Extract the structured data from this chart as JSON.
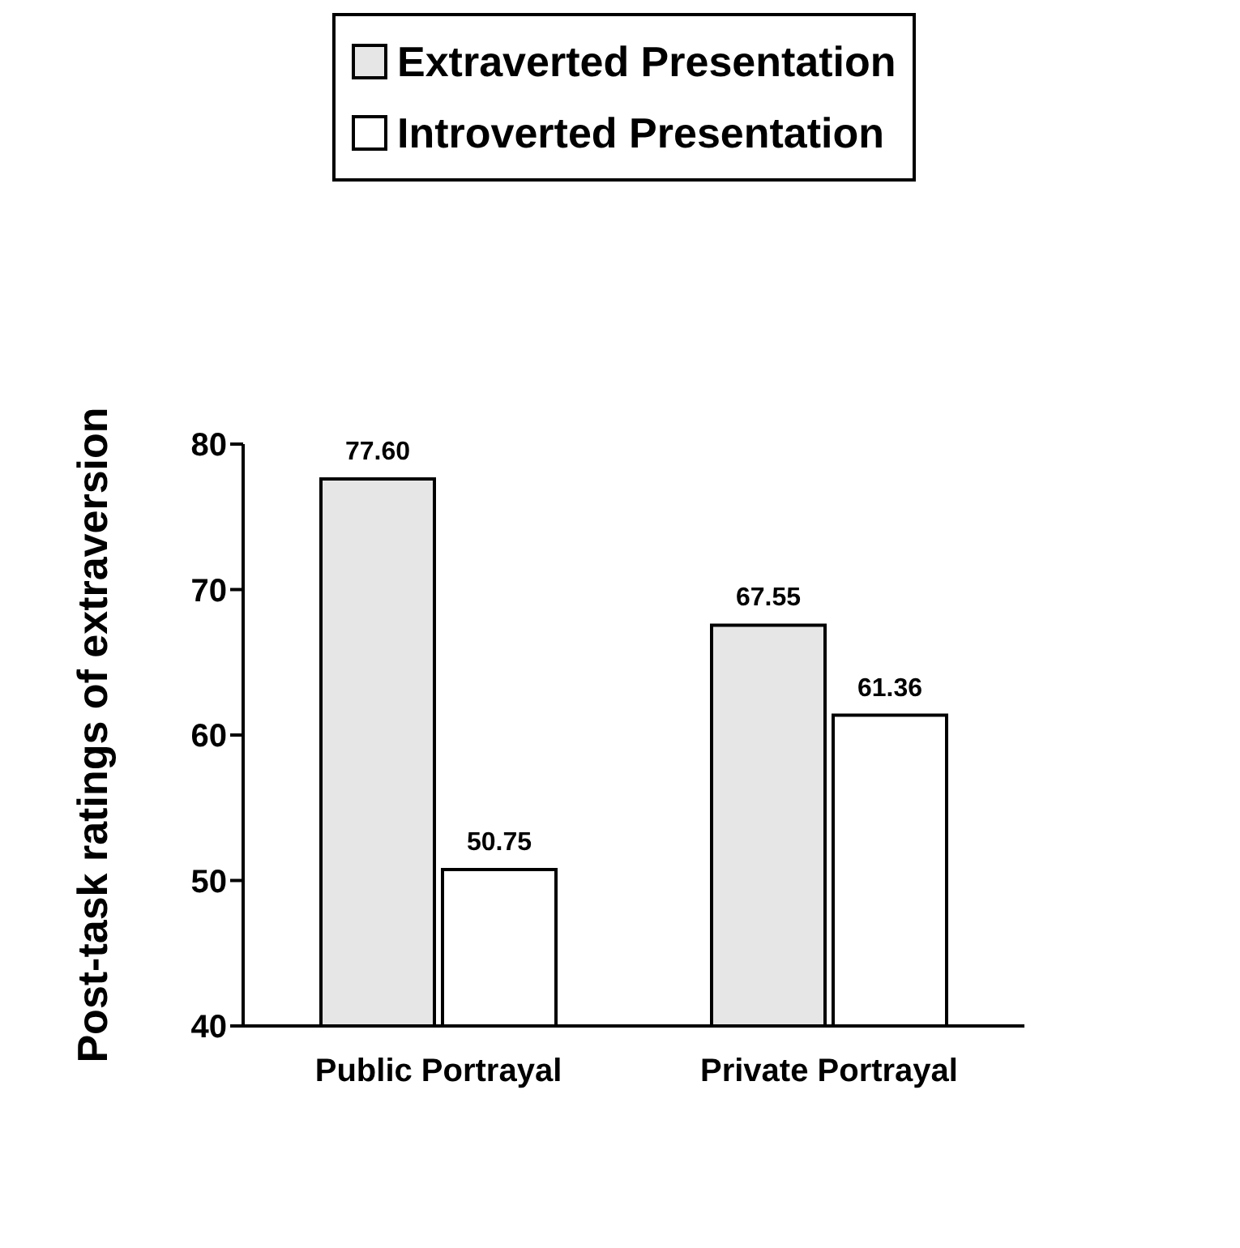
{
  "chart_data": {
    "type": "bar",
    "ylabel": "Post-task ratings of extraversion",
    "categories": [
      "Public Portrayal",
      "Private Portrayal"
    ],
    "series": [
      {
        "name": "Extraverted Presentation",
        "color": "#e6e6e6",
        "values": [
          77.6,
          67.55
        ],
        "value_labels": [
          "77.60",
          "67.55"
        ]
      },
      {
        "name": "Introverted Presentation",
        "color": "#ffffff",
        "values": [
          50.75,
          61.36
        ],
        "value_labels": [
          "50.75",
          "61.36"
        ]
      }
    ],
    "ylim": [
      40,
      80
    ],
    "yticks": [
      40,
      50,
      60,
      70,
      80
    ],
    "grid": false,
    "legend": "top left"
  }
}
